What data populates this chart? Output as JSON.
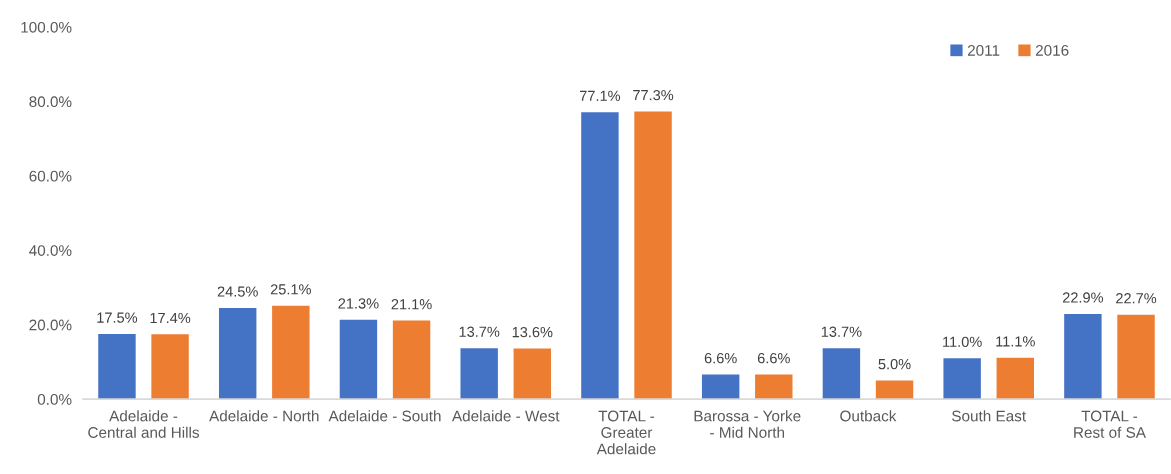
{
  "chart_data": {
    "type": "bar",
    "categories": [
      "Adelaide -\nCentral and Hills",
      "Adelaide - North",
      "Adelaide - South",
      "Adelaide - West",
      "TOTAL -\nGreater\nAdelaide",
      "Barossa - Yorke\n- Mid North",
      "Outback",
      "South East",
      "TOTAL -\nRest of SA"
    ],
    "series": [
      {
        "name": "2011",
        "color": "#4472c4",
        "values": [
          17.5,
          24.5,
          21.3,
          13.7,
          77.1,
          6.6,
          13.7,
          11.0,
          22.9
        ],
        "value_labels": [
          "17.5%",
          "24.5%",
          "21.3%",
          "13.7%",
          "77.1%",
          "6.6%",
          "13.7%",
          "11.0%",
          "22.9%"
        ]
      },
      {
        "name": "2016",
        "color": "#ed7d31",
        "values": [
          17.4,
          25.1,
          21.1,
          13.6,
          77.3,
          6.6,
          5.0,
          11.1,
          22.7
        ],
        "value_labels": [
          "17.4%",
          "25.1%",
          "21.1%",
          "13.6%",
          "77.3%",
          "6.6%",
          "5.0%",
          "11.1%",
          "22.7%"
        ]
      }
    ],
    "ylim": [
      0,
      100
    ],
    "yticks": [
      {
        "value": 0,
        "label": "0.0%"
      },
      {
        "value": 20,
        "label": "20.0%"
      },
      {
        "value": 40,
        "label": "40.0%"
      },
      {
        "value": 60,
        "label": "60.0%"
      },
      {
        "value": 80,
        "label": "80.0%"
      },
      {
        "value": 100,
        "label": "100.0%"
      }
    ],
    "legend": "top right"
  }
}
